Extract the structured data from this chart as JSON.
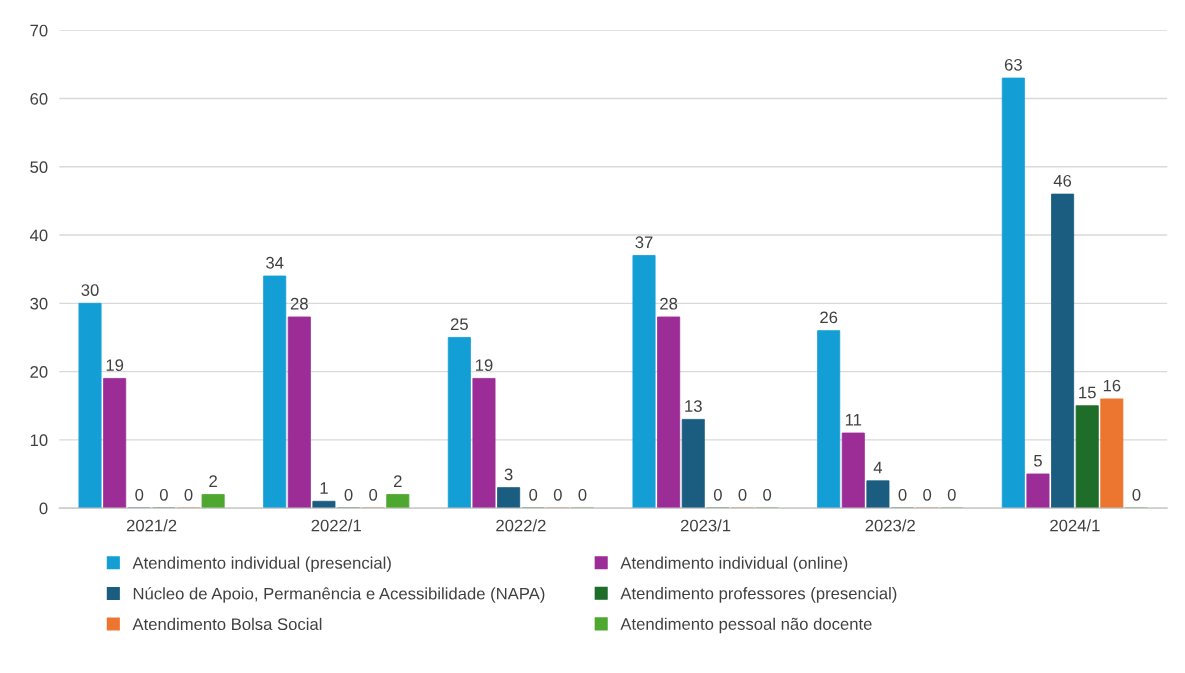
{
  "chart_data": {
    "type": "bar",
    "categories": [
      "2021/2",
      "2022/1",
      "2022/2",
      "2023/1",
      "2023/2",
      "2024/1"
    ],
    "series": [
      {
        "name": "Atendimento individual (presencial)",
        "color": "#139fd6",
        "values": [
          30,
          34,
          25,
          37,
          26,
          63
        ]
      },
      {
        "name": "Atendimento individual (online)",
        "color": "#9c2d96",
        "values": [
          19,
          28,
          19,
          28,
          11,
          5
        ]
      },
      {
        "name": "Núcleo de Apoio, Permanência e Acessibilidade (NAPA)",
        "color": "#1a5d80",
        "values": [
          0,
          1,
          3,
          13,
          4,
          46
        ]
      },
      {
        "name": "Atendimento professores (presencial)",
        "color": "#1e6e2a",
        "values": [
          0,
          0,
          0,
          0,
          0,
          15
        ]
      },
      {
        "name": "Atendimento Bolsa Social",
        "color": "#ec7630",
        "values": [
          0,
          0,
          0,
          0,
          0,
          16
        ]
      },
      {
        "name": "Atendimento pessoal não docente",
        "color": "#4ea72e",
        "values": [
          2,
          2,
          0,
          0,
          0,
          0
        ]
      }
    ],
    "ylim": [
      0,
      70
    ],
    "yticks": [
      0,
      10,
      20,
      30,
      40,
      50,
      60,
      70
    ],
    "grid": "y",
    "legend": "bottom",
    "data_labels": true
  }
}
